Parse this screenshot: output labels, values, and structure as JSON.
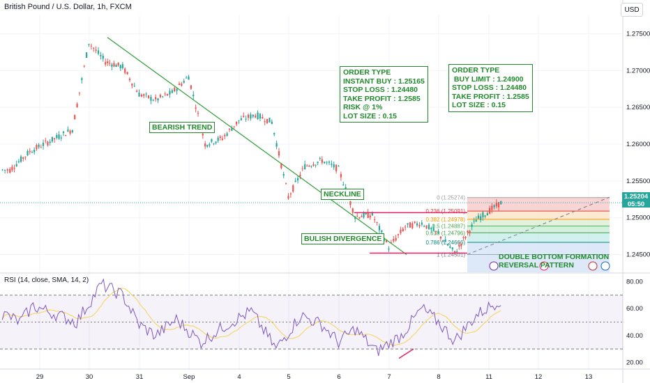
{
  "header": {
    "title": "British Pound / U.S. Dollar, 1h, FXCM",
    "currency_button": "USD",
    "rsi_label": "RSI (14, close, SMA, 14, 2)"
  },
  "colors": {
    "up": "#26a69a",
    "down": "#ef5350",
    "trend_line": "#2e9d36",
    "neckline": "#e91e63",
    "annotation": "#1f8a2a",
    "rsi_line": "#7e57c2",
    "rsi_ma": "#f5d76e"
  },
  "chart_data": [
    {
      "type": "candlestick",
      "title": "British Pound / U.S. Dollar, 1h, FXCM",
      "y_axis_ticks": [
        "1.27500",
        "1.27000",
        "1.26500",
        "1.26000",
        "1.25500",
        "1.25000",
        "1.24500"
      ],
      "ylim": [
        1.2425,
        1.2775
      ],
      "x_axis_ticks": [
        "29",
        "30",
        "31",
        "Sep",
        "4",
        "5",
        "6",
        "7",
        "8",
        "11",
        "12",
        "13"
      ],
      "current_price": "1.25204",
      "countdown": "05:50",
      "close_path": [
        [
          "29",
          1.2565
        ],
        [
          "29",
          1.259
        ],
        [
          "30",
          1.262
        ],
        [
          "30",
          1.2738
        ],
        [
          "30",
          1.2712
        ],
        [
          "31",
          1.2705
        ],
        [
          "31",
          1.2668
        ],
        [
          "31",
          1.266
        ],
        [
          "Sep",
          1.267
        ],
        [
          "Sep",
          1.2692
        ],
        [
          "Sep",
          1.26
        ],
        [
          "4",
          1.2608
        ],
        [
          "4",
          1.2632
        ],
        [
          "4",
          1.264
        ],
        [
          "5",
          1.263
        ],
        [
          "5",
          1.2528
        ],
        [
          "5",
          1.257
        ],
        [
          "6",
          1.2578
        ],
        [
          "6",
          1.2566
        ],
        [
          "6",
          1.2502
        ],
        [
          "7",
          1.2504
        ],
        [
          "7",
          1.246
        ],
        [
          "7",
          1.2488
        ],
        [
          "8",
          1.2493
        ],
        [
          "8",
          1.2478
        ],
        [
          "8",
          1.2452
        ],
        [
          "11",
          1.2497
        ],
        [
          "11",
          1.25204
        ]
      ],
      "fibonacci": [
        {
          "level": "0",
          "price": "1.25274"
        },
        {
          "level": "0.236",
          "price": "1.25091"
        },
        {
          "level": "0.382",
          "price": "1.24978"
        },
        {
          "level": "0.5",
          "price": "1.24887"
        },
        {
          "level": "0.618",
          "price": "1.24796"
        },
        {
          "level": "0.786",
          "price": "1.24666"
        },
        {
          "level": "1",
          "price": "1.24501"
        }
      ],
      "neckline_price": 1.2507,
      "bottom_line_price": 1.2452,
      "annotations": {
        "bearish_trend": "BEARISH TREND",
        "neckline": "NECKLINE",
        "bullish_divergence": "BULISH DIVERGENCE",
        "double_bottom": "DOUBLE BOTTOM FORMATION\nREVERSAL PATTERN",
        "order_1": "ORDER TYPE\nINSTANT BUY : 1.25165\nSTOP LOSS : 1.24480\nTAKE PROFIT : 1.2585\nRISK @ 1%\nLOT SIZE : 0.15",
        "order_2": "ORDER TYPE\n BUY LIMIT : 1.24900\nSTOP LOSS : 1.24480\nTAKE PROFIT : 1.2585\nLOT SIZE : 0.15"
      }
    },
    {
      "type": "line",
      "title": "RSI (14, close, SMA, 14, 2)",
      "y_axis_ticks": [
        "80.00",
        "60.00",
        "40.00",
        "20.00"
      ],
      "ylim": [
        15,
        85
      ],
      "bands": [
        70,
        50,
        30
      ],
      "rsi_path": [
        [
          "29",
          55
        ],
        [
          "29",
          50
        ],
        [
          "29",
          62
        ],
        [
          "30",
          50
        ],
        [
          "30",
          78
        ],
        [
          "31",
          70
        ],
        [
          "31",
          48
        ],
        [
          "31",
          40
        ],
        [
          "Sep",
          52
        ],
        [
          "Sep",
          35
        ],
        [
          "4",
          48
        ],
        [
          "4",
          58
        ],
        [
          "5",
          30
        ],
        [
          "5",
          55
        ],
        [
          "6",
          48
        ],
        [
          "6",
          35
        ],
        [
          "6",
          45
        ],
        [
          "7",
          28
        ],
        [
          "7",
          40
        ],
        [
          "8",
          60
        ],
        [
          "8",
          50
        ],
        [
          "8",
          36
        ],
        [
          "11",
          55
        ],
        [
          "11",
          67
        ]
      ]
    }
  ]
}
